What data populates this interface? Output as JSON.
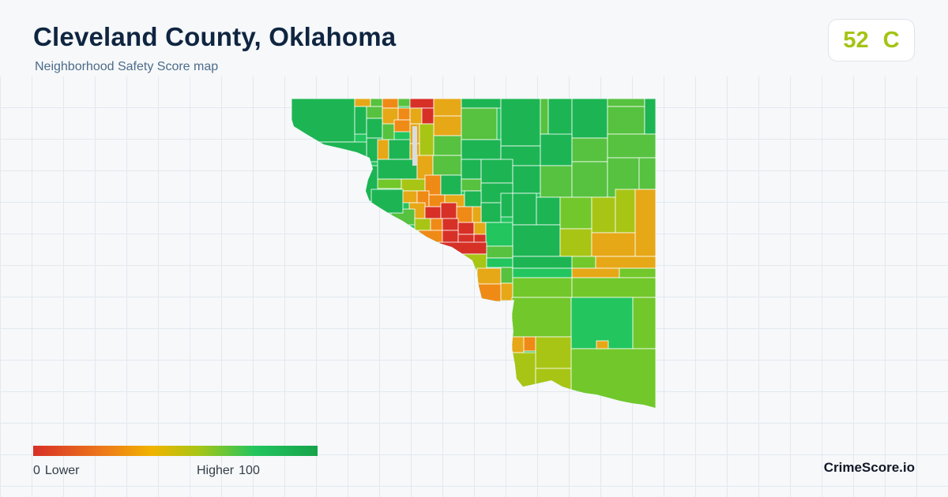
{
  "header": {
    "title": "Cleveland County, Oklahoma",
    "subtitle": "Neighborhood Safety Score map"
  },
  "score": {
    "value": "52",
    "grade": "C",
    "color": "#a3c414"
  },
  "legend": {
    "min_value": "0",
    "min_label": "Lower",
    "max_label": "Higher",
    "max_value": "100",
    "colors": [
      "#d73027",
      "#ee7a1a",
      "#f0b400",
      "#a8c515",
      "#22c55e",
      "#16a34a"
    ]
  },
  "brand": "CrimeScore.io",
  "colors": {
    "low": "#d73027",
    "low_mid": "#ef8a16",
    "mid": "#e6a817",
    "mid_high": "#a8c515",
    "high_light": "#72c82a",
    "high": "#56c23f",
    "very_high": "#22c55e",
    "top": "#1db553",
    "no_data": "#d9dde2"
  }
}
